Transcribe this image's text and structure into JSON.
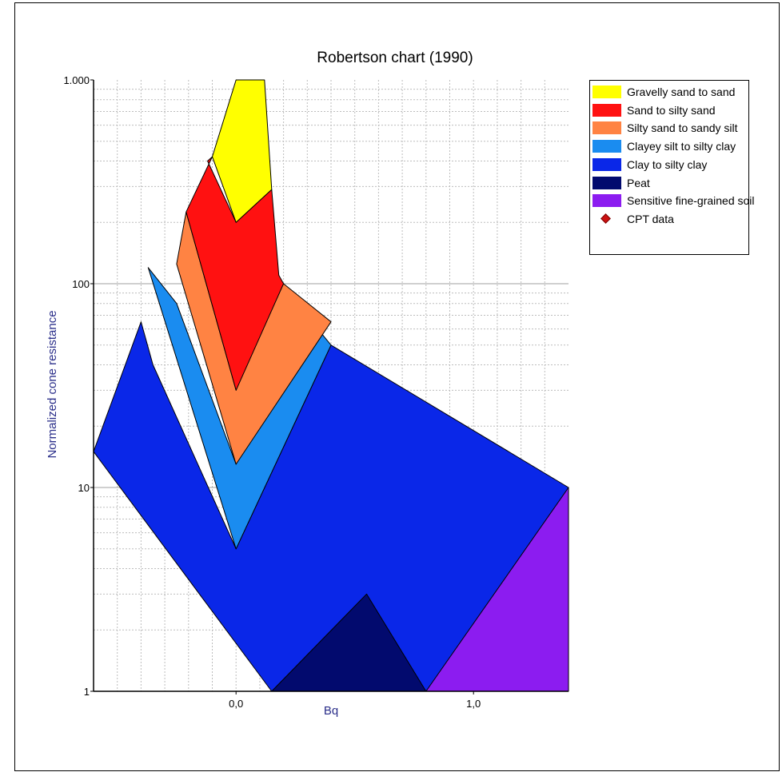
{
  "chart_data": {
    "type": "area",
    "title": "Robertson chart (1990)",
    "xlabel": "Bq",
    "ylabel": "Normalized cone resistance",
    "xlim": [
      -0.6,
      1.4
    ],
    "ylim": [
      1,
      1000
    ],
    "y_scale": "log",
    "x_tick_labels": [
      {
        "value": 0,
        "label": "0,0"
      },
      {
        "value": 1,
        "label": "1,0"
      }
    ],
    "y_tick_labels": [
      {
        "value": 1,
        "label": "1"
      },
      {
        "value": 10,
        "label": "10"
      },
      {
        "value": 100,
        "label": "100"
      },
      {
        "value": 1000,
        "label": "1.000"
      }
    ],
    "grid": true,
    "legend_position": "right",
    "regions": [
      {
        "name": "Clay to silty clay",
        "color": "#0a27e8",
        "points": [
          [
            -0.6,
            15
          ],
          [
            -0.4,
            65
          ],
          [
            -0.35,
            40
          ],
          [
            0,
            5
          ],
          [
            0.4,
            50
          ],
          [
            1.4,
            10
          ],
          [
            1.15,
            1
          ],
          [
            0.15,
            1
          ]
        ]
      },
      {
        "name": "Clayey silt to silty clay",
        "color": "#1a8cf0",
        "points": [
          [
            -0.37,
            120
          ],
          [
            0.0,
            5
          ],
          [
            0.4,
            50
          ],
          [
            0.32,
            65
          ],
          [
            0.0,
            13
          ],
          [
            -0.25,
            80
          ]
        ]
      },
      {
        "name": "Silty sand to sandy silt",
        "color": "#ff8343",
        "points": [
          [
            -0.21,
            225
          ],
          [
            -0.25,
            125
          ],
          [
            0,
            13
          ],
          [
            0.4,
            65
          ],
          [
            0.2,
            100
          ],
          [
            0.18,
            100
          ],
          [
            0,
            30
          ]
        ]
      },
      {
        "name": "Sand to silty sand",
        "color": "#ff1111",
        "points": [
          [
            -0.1,
            420
          ],
          [
            -0.21,
            225
          ],
          [
            0,
            30
          ],
          [
            0.2,
            100
          ],
          [
            0.18,
            110
          ],
          [
            0.15,
            290
          ],
          [
            0,
            200
          ],
          [
            -0.12,
            400
          ]
        ]
      },
      {
        "name": "Gravelly sand to sand",
        "color": "#ffff00",
        "points": [
          [
            -0.1,
            420
          ],
          [
            0,
            1000
          ],
          [
            0.12,
            1000
          ],
          [
            0.15,
            290
          ],
          [
            0,
            200
          ]
        ]
      },
      {
        "name": "Peat",
        "color": "#020a6e",
        "points": [
          [
            0.15,
            1
          ],
          [
            0.55,
            3
          ],
          [
            0.8,
            1
          ]
        ]
      },
      {
        "name": "Sensitive fine-grained soil",
        "color": "#8c1cf0",
        "points": [
          [
            0.8,
            1
          ],
          [
            1.4,
            10
          ],
          [
            1.4,
            1
          ]
        ]
      }
    ],
    "legend": [
      {
        "label": "Gravelly sand to sand",
        "color": "#ffff00",
        "marker": "box"
      },
      {
        "label": "Sand to silty sand",
        "color": "#ff1111",
        "marker": "box"
      },
      {
        "label": "Silty sand to sandy silt",
        "color": "#ff8343",
        "marker": "box"
      },
      {
        "label": "Clayey silt to silty clay",
        "color": "#1a8cf0",
        "marker": "box"
      },
      {
        "label": "Clay to silty clay",
        "color": "#0a27e8",
        "marker": "box"
      },
      {
        "label": "Peat",
        "color": "#020a6e",
        "marker": "box"
      },
      {
        "label": "Sensitive fine-grained soil",
        "color": "#8c1cf0",
        "marker": "box"
      },
      {
        "label": "CPT data",
        "color": "#cc1111",
        "marker": "diamond"
      }
    ]
  }
}
